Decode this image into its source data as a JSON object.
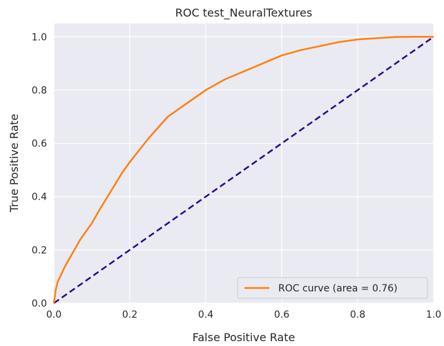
{
  "chart_data": {
    "type": "line",
    "title": "ROC test_NeuralTextures",
    "xlabel": "False Positive Rate",
    "ylabel": "True Positive Rate",
    "xlim": [
      0.0,
      1.0
    ],
    "ylim": [
      0.0,
      1.05
    ],
    "x_ticks": [
      "0.0",
      "0.2",
      "0.4",
      "0.6",
      "0.8",
      "1.0"
    ],
    "y_ticks": [
      "0.0",
      "0.2",
      "0.4",
      "0.6",
      "0.8",
      "1.0"
    ],
    "grid": true,
    "legend_placement": "lower-right",
    "series": [
      {
        "name": "ROC curve (area = 0.76)",
        "color": "#ff7f0e",
        "style": "solid",
        "x": [
          0.0,
          0.005,
          0.01,
          0.02,
          0.03,
          0.05,
          0.07,
          0.1,
          0.12,
          0.15,
          0.18,
          0.2,
          0.25,
          0.3,
          0.35,
          0.4,
          0.45,
          0.5,
          0.55,
          0.6,
          0.65,
          0.7,
          0.75,
          0.8,
          0.85,
          0.9,
          0.95,
          1.0
        ],
        "y": [
          0.0,
          0.05,
          0.08,
          0.11,
          0.14,
          0.19,
          0.24,
          0.3,
          0.35,
          0.42,
          0.49,
          0.53,
          0.62,
          0.7,
          0.75,
          0.8,
          0.84,
          0.87,
          0.9,
          0.93,
          0.95,
          0.965,
          0.98,
          0.99,
          0.995,
          0.999,
          1.0,
          1.0
        ]
      },
      {
        "name": "",
        "color": "#2e0a8a",
        "style": "dashed",
        "x": [
          0.0,
          1.0
        ],
        "y": [
          0.0,
          1.0
        ]
      }
    ]
  }
}
